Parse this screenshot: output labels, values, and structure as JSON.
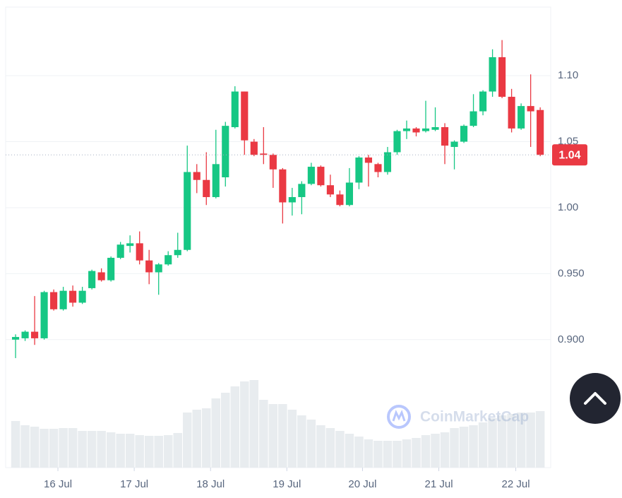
{
  "chart_data": {
    "type": "candlestick",
    "x": [
      0,
      1,
      2,
      3,
      4,
      5,
      6,
      7,
      8,
      9,
      10,
      11,
      12,
      13,
      14,
      15,
      16,
      17,
      18,
      19,
      20,
      21,
      22,
      23,
      24,
      25,
      26,
      27,
      28,
      29,
      30,
      31,
      32,
      33,
      34,
      35,
      36,
      37,
      38,
      39,
      40,
      41,
      42,
      43,
      44,
      45,
      46,
      47,
      48,
      49,
      50,
      51,
      52,
      53,
      54,
      55
    ],
    "open": [
      0.9,
      0.901,
      0.906,
      0.901,
      0.936,
      0.923,
      0.937,
      0.928,
      0.939,
      0.951,
      0.945,
      0.962,
      0.971,
      0.973,
      0.96,
      0.951,
      0.957,
      0.964,
      0.968,
      1.027,
      1.021,
      1.008,
      1.023,
      1.061,
      1.088,
      1.05,
      1.041,
      1.04,
      1.029,
      1.004,
      1.008,
      1.018,
      1.031,
      1.017,
      1.01,
      1.002,
      1.019,
      1.038,
      1.033,
      1.027,
      1.042,
      1.058,
      1.06,
      1.058,
      1.059,
      1.061,
      1.046,
      1.05,
      1.062,
      1.073,
      1.088,
      1.114,
      1.084,
      1.06,
      1.077,
      1.074
    ],
    "high": [
      0.904,
      0.907,
      0.933,
      0.937,
      0.938,
      0.94,
      0.941,
      0.94,
      0.953,
      0.954,
      0.963,
      0.974,
      0.979,
      0.982,
      0.968,
      0.958,
      0.967,
      0.981,
      1.047,
      1.033,
      1.042,
      1.059,
      1.065,
      1.092,
      1.088,
      1.052,
      1.061,
      1.041,
      1.03,
      1.015,
      1.02,
      1.034,
      1.032,
      1.025,
      1.013,
      1.03,
      1.039,
      1.04,
      1.034,
      1.046,
      1.059,
      1.066,
      1.061,
      1.081,
      1.076,
      1.064,
      1.051,
      1.063,
      1.086,
      1.089,
      1.12,
      1.127,
      1.09,
      1.079,
      1.101,
      1.076
    ],
    "low": [
      0.886,
      0.899,
      0.896,
      0.9,
      0.922,
      0.922,
      0.925,
      0.927,
      0.938,
      0.944,
      0.944,
      0.961,
      0.966,
      0.957,
      0.942,
      0.934,
      0.956,
      0.962,
      0.967,
      1.011,
      1.002,
      1.007,
      1.016,
      1.06,
      1.04,
      1.039,
      1.033,
      1.015,
      0.988,
      0.994,
      0.995,
      1.017,
      1.016,
      1.008,
      1.001,
      1.001,
      1.014,
      1.016,
      1.023,
      1.025,
      1.04,
      1.052,
      1.054,
      1.057,
      1.058,
      1.033,
      1.029,
      1.049,
      1.061,
      1.07,
      1.084,
      1.083,
      1.057,
      1.059,
      1.046,
      1.039
    ],
    "close": [
      0.902,
      0.906,
      0.901,
      0.936,
      0.923,
      0.937,
      0.928,
      0.937,
      0.952,
      0.945,
      0.962,
      0.972,
      0.973,
      0.96,
      0.951,
      0.957,
      0.964,
      0.968,
      1.027,
      1.021,
      1.008,
      1.033,
      1.062,
      1.088,
      1.051,
      1.04,
      1.04,
      1.029,
      1.004,
      1.008,
      1.018,
      1.031,
      1.017,
      1.01,
      1.002,
      1.019,
      1.038,
      1.034,
      1.027,
      1.042,
      1.058,
      1.06,
      1.057,
      1.06,
      1.061,
      1.047,
      1.05,
      1.062,
      1.073,
      1.088,
      1.114,
      1.084,
      1.06,
      1.077,
      1.073,
      1.04
    ],
    "volume": [
      66,
      60,
      58,
      55,
      55,
      56,
      56,
      52,
      52,
      52,
      50,
      48,
      48,
      46,
      45,
      45,
      46,
      49,
      78,
      82,
      84,
      98,
      106,
      115,
      122,
      124,
      96,
      90,
      90,
      82,
      74,
      68,
      60,
      56,
      52,
      48,
      44,
      40,
      38,
      38,
      38,
      40,
      42,
      46,
      48,
      50,
      56,
      58,
      60,
      64,
      70,
      74,
      76,
      78,
      78,
      80
    ],
    "up_color": "#16c784",
    "down_color": "#ea3943",
    "volume_color": "#e8ecef",
    "xlim": [
      -1.04,
      56.1
    ],
    "xticks": [
      {
        "value": 4.44,
        "label": "16 Jul"
      },
      {
        "value": 12.44,
        "label": "17 Jul"
      },
      {
        "value": 20.44,
        "label": "18 Jul"
      },
      {
        "value": 28.44,
        "label": "19 Jul"
      },
      {
        "value": 36.37,
        "label": "20 Jul"
      },
      {
        "value": 44.37,
        "label": "21 Jul"
      },
      {
        "value": 52.44,
        "label": "22 Jul"
      }
    ],
    "ylim": [
      0.803,
      1.152
    ],
    "yticks": [
      {
        "value": 0.9,
        "label": "0.900"
      },
      {
        "value": 0.95,
        "label": "0.950"
      },
      {
        "value": 1.0,
        "label": "1.00"
      },
      {
        "value": 1.05,
        "label": "1.05"
      },
      {
        "value": 1.1,
        "label": "1.10"
      }
    ],
    "last_price": 1.04,
    "watermark": "CoinMarketCap",
    "grid": true
  }
}
